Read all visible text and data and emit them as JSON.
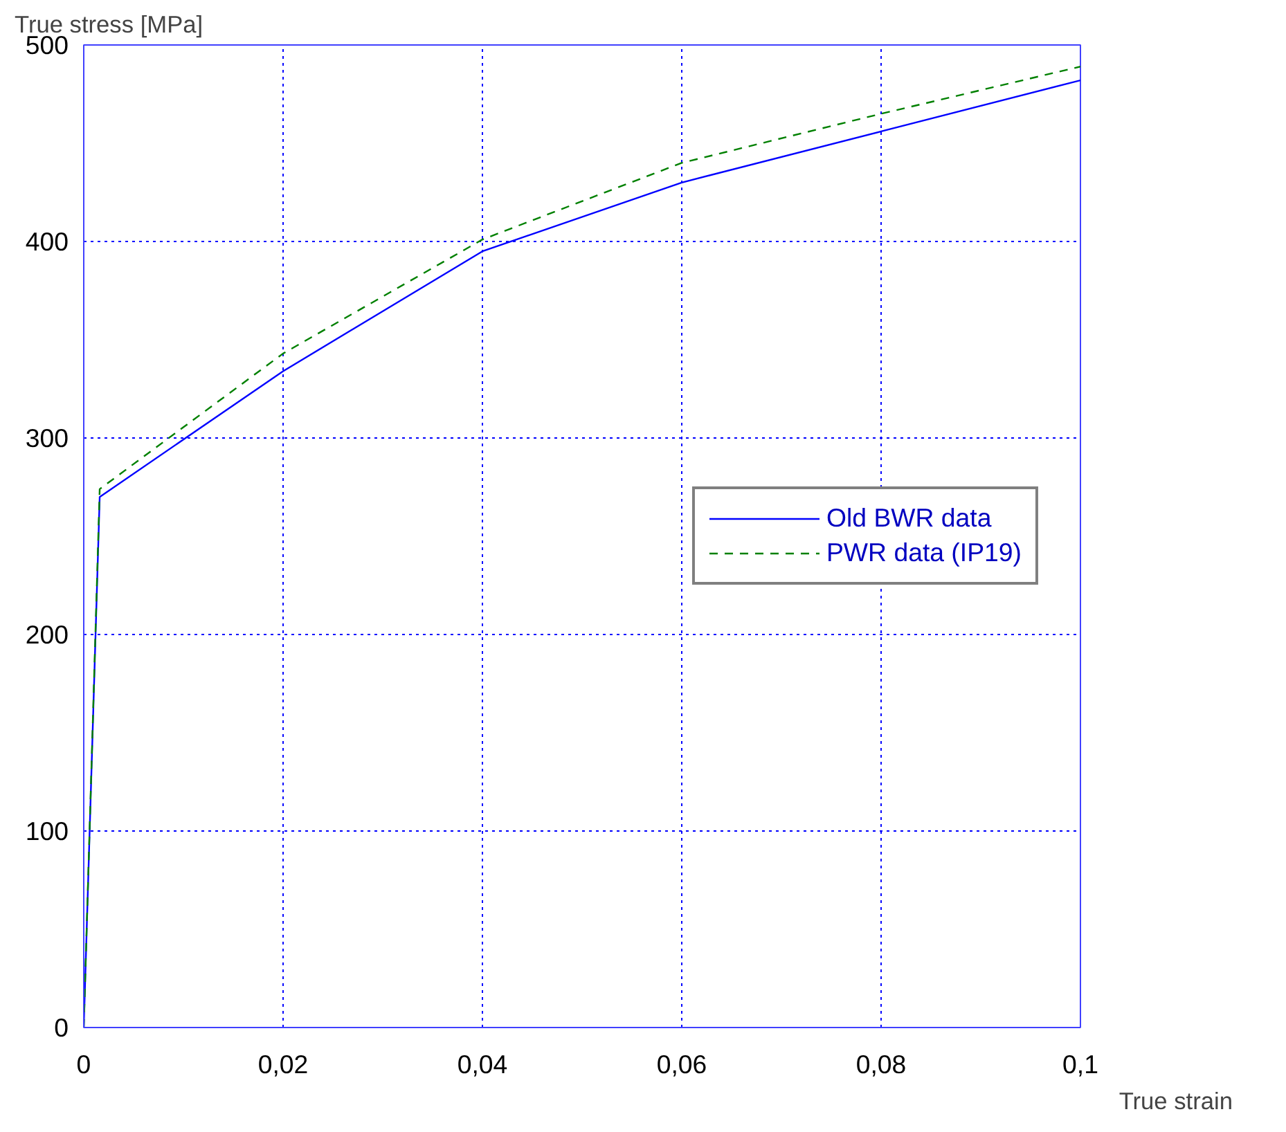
{
  "chart_data": {
    "type": "line",
    "xlabel": "True strain",
    "ylabel": "True stress [MPa]",
    "series": [
      {
        "name": "Old BWR data",
        "color": "#0000ff",
        "line_style": "solid",
        "x": [
          0,
          0.0016,
          0.02,
          0.04,
          0.06,
          0.08,
          0.1
        ],
        "values": [
          0,
          270,
          334,
          395,
          430,
          456,
          482
        ]
      },
      {
        "name": "PWR data (IP19)",
        "color": "#008000",
        "line_style": "dashed",
        "x": [
          0,
          0.0016,
          0.02,
          0.04,
          0.06,
          0.08,
          0.1
        ],
        "values": [
          0,
          274,
          343,
          401,
          440,
          465,
          489
        ]
      }
    ],
    "xlim": [
      0,
      0.1
    ],
    "ylim": [
      0,
      500
    ],
    "xticks": [
      0,
      {
        "value": 0.02,
        "label": "0,02"
      },
      {
        "value": 0.04,
        "label": "0,04"
      },
      {
        "value": 0.06,
        "label": "0,06"
      },
      {
        "value": 0.08,
        "label": "0,08"
      },
      {
        "value": 0.1,
        "label": "0,1"
      }
    ],
    "yticks": [
      0,
      100,
      200,
      300,
      400,
      500
    ],
    "grid": true,
    "legend": "right",
    "marker": "none"
  }
}
